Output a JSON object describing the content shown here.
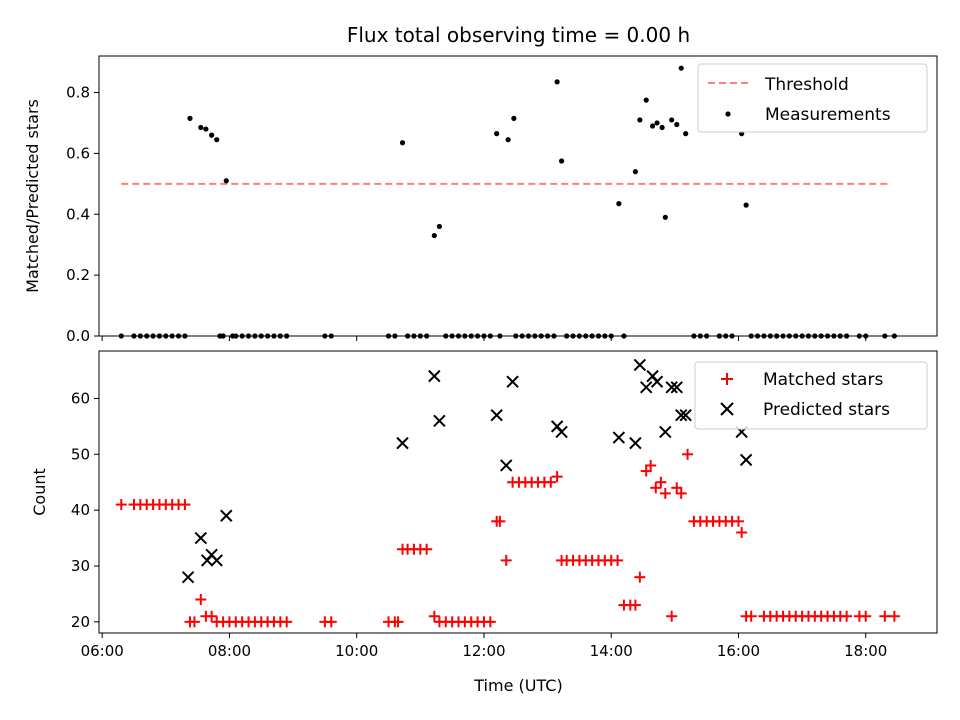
{
  "chart_data": [
    {
      "type": "line",
      "title": "Flux total observing time = 0.00 h",
      "xlabel": "",
      "ylabel": "Matched/Predicted stars",
      "xlim": [
        5.95,
        19.12
      ],
      "ylim": [
        0.0,
        0.92
      ],
      "yticks": [
        0.0,
        0.2,
        0.4,
        0.6,
        0.8
      ],
      "ytick_labels": [
        "0.0",
        "0.2",
        "0.4",
        "0.6",
        "0.8"
      ],
      "xticks": [
        6,
        8,
        10,
        12,
        14,
        16,
        18
      ],
      "xtick_labels": [],
      "legend_position": "top-right",
      "series": [
        {
          "name": "Threshold",
          "style": "dashed",
          "color": "#ff7f7f",
          "x": [
            6.3,
            18.4
          ],
          "y": [
            0.5,
            0.5
          ]
        },
        {
          "name": "Measurements",
          "style": "scatter",
          "color": "#000000",
          "x": [
            6.3,
            6.5,
            6.6,
            6.7,
            6.8,
            6.9,
            7.0,
            7.1,
            7.2,
            7.3,
            7.38,
            7.55,
            7.63,
            7.72,
            7.8,
            7.95,
            7.85,
            7.9,
            8.05,
            8.1,
            8.2,
            8.3,
            8.4,
            8.5,
            8.6,
            8.7,
            8.8,
            8.9,
            9.5,
            9.6,
            10.5,
            10.6,
            10.72,
            10.8,
            10.9,
            11.0,
            11.1,
            11.22,
            11.3,
            11.4,
            11.5,
            11.6,
            11.7,
            11.8,
            11.9,
            12.0,
            12.1,
            12.2,
            12.25,
            12.38,
            12.47,
            12.5,
            12.6,
            12.7,
            12.8,
            12.9,
            13.0,
            13.1,
            13.15,
            13.22,
            13.3,
            13.4,
            13.5,
            13.6,
            13.7,
            13.8,
            13.9,
            14.0,
            14.12,
            14.2,
            14.38,
            14.45,
            14.55,
            14.65,
            14.72,
            14.8,
            14.85,
            14.95,
            15.03,
            15.1,
            15.17,
            15.3,
            15.4,
            15.5,
            15.7,
            15.8,
            15.9,
            16.05,
            16.12,
            16.2,
            16.3,
            16.4,
            16.5,
            16.6,
            16.7,
            16.8,
            16.9,
            17.0,
            17.1,
            17.2,
            17.3,
            17.4,
            17.5,
            17.6,
            17.7,
            17.9,
            18.0,
            18.3,
            18.45
          ],
          "y": [
            0,
            0,
            0,
            0,
            0,
            0,
            0,
            0,
            0,
            0,
            0.715,
            0.685,
            0.68,
            0.66,
            0.645,
            0.51,
            0,
            0,
            0,
            0,
            0,
            0,
            0,
            0,
            0,
            0,
            0,
            0,
            0,
            0,
            0,
            0,
            0.635,
            0,
            0,
            0,
            0,
            0.33,
            0.36,
            0,
            0,
            0,
            0,
            0,
            0,
            0,
            0,
            0.665,
            0,
            0.645,
            0.715,
            0,
            0,
            0,
            0,
            0,
            0,
            0,
            0.835,
            0.575,
            0,
            0,
            0,
            0,
            0,
            0,
            0,
            0,
            0.435,
            0,
            0.54,
            0.71,
            0.775,
            0.69,
            0.7,
            0.685,
            0.39,
            0.71,
            0.695,
            0.88,
            0.665,
            0,
            0,
            0,
            0,
            0,
            0,
            0.665,
            0.43,
            0,
            0,
            0,
            0,
            0,
            0,
            0,
            0,
            0,
            0,
            0,
            0,
            0,
            0,
            0,
            0,
            0,
            0,
            0,
            0
          ]
        }
      ]
    },
    {
      "type": "scatter",
      "title": "",
      "xlabel": "Time (UTC)",
      "ylabel": "Count",
      "xlim": [
        5.95,
        19.12
      ],
      "ylim": [
        18,
        68.5
      ],
      "yticks": [
        20,
        30,
        40,
        50,
        60
      ],
      "ytick_labels": [
        "20",
        "30",
        "40",
        "50",
        "60"
      ],
      "xticks": [
        6,
        8,
        10,
        12,
        14,
        16,
        18
      ],
      "xtick_labels": [
        "06:00",
        "08:00",
        "10:00",
        "12:00",
        "14:00",
        "16:00",
        "18:00"
      ],
      "legend_position": "top-right",
      "series": [
        {
          "name": "Matched stars",
          "marker": "plus",
          "color": "#ff0000",
          "x": [
            6.3,
            6.5,
            6.6,
            6.7,
            6.8,
            6.9,
            7.0,
            7.1,
            7.2,
            7.3,
            7.38,
            7.45,
            7.55,
            7.63,
            7.72,
            7.8,
            7.9,
            8.0,
            8.1,
            8.2,
            8.3,
            8.4,
            8.5,
            8.6,
            8.7,
            8.8,
            8.9,
            9.5,
            9.6,
            10.5,
            10.6,
            10.65,
            10.72,
            10.8,
            10.9,
            11.0,
            11.1,
            11.22,
            11.3,
            11.4,
            11.5,
            11.6,
            11.7,
            11.8,
            11.9,
            12.0,
            12.1,
            12.2,
            12.25,
            12.35,
            12.45,
            12.55,
            12.65,
            12.75,
            12.85,
            12.95,
            13.05,
            13.15,
            13.22,
            13.3,
            13.4,
            13.5,
            13.6,
            13.7,
            13.8,
            13.9,
            14.0,
            14.1,
            14.2,
            14.3,
            14.38,
            14.45,
            14.55,
            14.62,
            14.7,
            14.78,
            14.85,
            14.95,
            15.03,
            15.1,
            15.2,
            15.3,
            15.4,
            15.5,
            15.6,
            15.7,
            15.8,
            15.9,
            16.0,
            16.05,
            16.12,
            16.2,
            16.4,
            16.5,
            16.6,
            16.7,
            16.8,
            16.9,
            17.0,
            17.1,
            17.2,
            17.3,
            17.4,
            17.5,
            17.6,
            17.7,
            17.9,
            18.0,
            18.3,
            18.45
          ],
          "y": [
            41,
            41,
            41,
            41,
            41,
            41,
            41,
            41,
            41,
            41,
            20,
            20,
            24,
            21,
            21,
            20,
            20,
            20,
            20,
            20,
            20,
            20,
            20,
            20,
            20,
            20,
            20,
            20,
            20,
            20,
            20,
            20,
            33,
            33,
            33,
            33,
            33,
            21,
            20,
            20,
            20,
            20,
            20,
            20,
            20,
            20,
            20,
            38,
            38,
            31,
            45,
            45,
            45,
            45,
            45,
            45,
            45,
            46,
            31,
            31,
            31,
            31,
            31,
            31,
            31,
            31,
            31,
            31,
            23,
            23,
            23,
            28,
            47,
            48,
            44,
            45,
            43,
            21,
            44,
            43,
            50,
            38,
            38,
            38,
            38,
            38,
            38,
            38,
            38,
            36,
            21,
            21,
            21,
            21,
            21,
            21,
            21,
            21,
            21,
            21,
            21,
            21,
            21,
            21,
            21,
            21,
            21,
            21,
            21,
            21
          ]
        },
        {
          "name": "Predicted stars",
          "marker": "x",
          "color": "#000000",
          "x": [
            7.35,
            7.55,
            7.65,
            7.72,
            7.8,
            7.95,
            10.72,
            11.22,
            11.3,
            12.2,
            12.35,
            12.45,
            13.15,
            13.22,
            14.12,
            14.38,
            14.45,
            14.55,
            14.65,
            14.72,
            14.85,
            14.95,
            15.03,
            15.1,
            15.17,
            16.05,
            16.12
          ],
          "y": [
            28,
            35,
            31,
            32,
            31,
            39,
            52,
            64,
            56,
            57,
            48,
            63,
            55,
            54,
            53,
            52,
            66,
            62,
            64,
            63,
            54,
            62,
            62,
            57,
            57,
            54,
            49
          ]
        }
      ]
    }
  ]
}
